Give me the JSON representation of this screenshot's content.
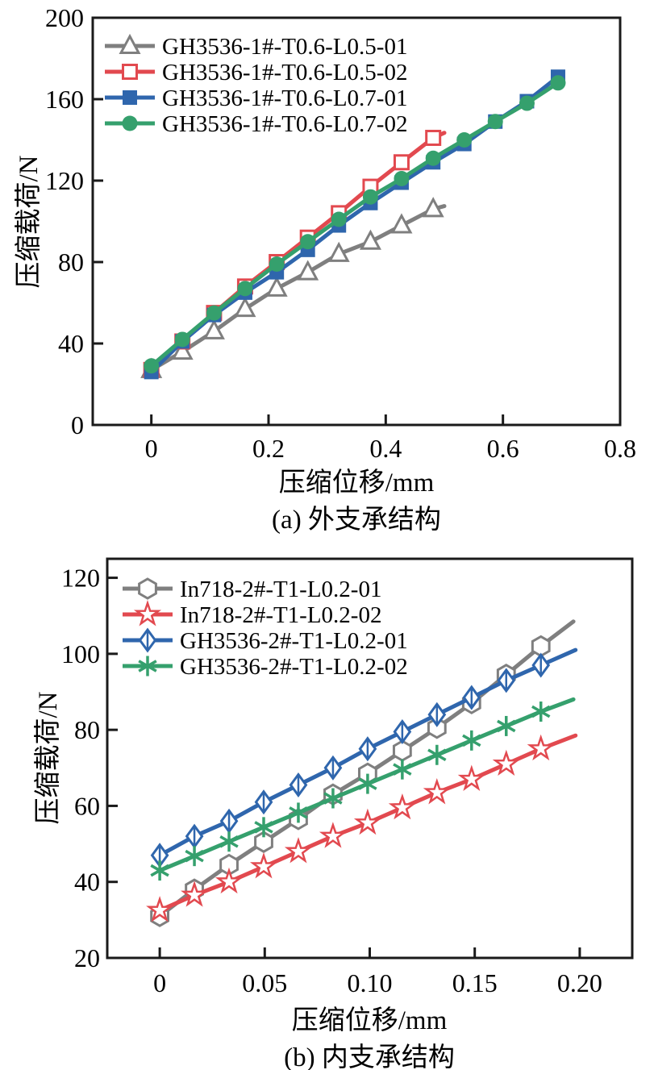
{
  "chart_data": [
    {
      "id": "a",
      "type": "line",
      "title": "",
      "xlabel": "压缩位移/mm",
      "ylabel": "压缩载荷/N",
      "caption": "(a) 外支承结构",
      "xlim": [
        -0.1,
        0.8
      ],
      "ylim": [
        0,
        200
      ],
      "grid": false,
      "legend_position": "upper-left-inside",
      "xticks": {
        "values": [
          0,
          0.2,
          0.4,
          0.6,
          0.8
        ],
        "labels": [
          "0",
          "0.2",
          "0.4",
          "0.6",
          "0.8"
        ]
      },
      "yticks": {
        "values": [
          0,
          40,
          80,
          120,
          160,
          200
        ],
        "labels": [
          "0",
          "40",
          "80",
          "120",
          "160",
          "200"
        ]
      },
      "series": [
        {
          "name": "GH3536-1#-T0.6-L0.5-01",
          "color": "#7f7f7f",
          "marker": "triangle-open",
          "x": [
            0,
            0.053,
            0.107,
            0.16,
            0.214,
            0.267,
            0.32,
            0.374,
            0.427,
            0.481
          ],
          "y": [
            27,
            36,
            46,
            57,
            67,
            75,
            84,
            90,
            98,
            106
          ],
          "line_end": [
            0.5,
            107.5
          ]
        },
        {
          "name": "GH3536-1#-T0.6-L0.5-02",
          "color": "#e2494f",
          "marker": "square-open",
          "x": [
            0,
            0.053,
            0.107,
            0.16,
            0.214,
            0.267,
            0.32,
            0.374,
            0.427,
            0.481
          ],
          "y": [
            27,
            41,
            55,
            68,
            80,
            92,
            104,
            117,
            129,
            141
          ],
          "line_end": [
            0.5,
            143.5
          ]
        },
        {
          "name": "GH3536-1#-T0.6-L0.7-01",
          "color": "#2f66ad",
          "marker": "square-filled",
          "x": [
            0,
            0.053,
            0.107,
            0.16,
            0.214,
            0.267,
            0.32,
            0.374,
            0.427,
            0.481,
            0.534,
            0.587,
            0.641,
            0.694
          ],
          "y": [
            26,
            41,
            54,
            65,
            75,
            86,
            98,
            109,
            119,
            129,
            138,
            149,
            159,
            171
          ],
          "line_end": null
        },
        {
          "name": "GH3536-1#-T0.6-L0.7-02",
          "color": "#35a06d",
          "marker": "circle-filled",
          "x": [
            0,
            0.053,
            0.107,
            0.16,
            0.214,
            0.267,
            0.32,
            0.374,
            0.427,
            0.481,
            0.534,
            0.587,
            0.641,
            0.694
          ],
          "y": [
            29,
            42,
            55,
            67,
            79,
            90,
            101,
            112,
            121,
            131,
            140,
            149,
            158,
            168
          ],
          "line_end": null
        }
      ]
    },
    {
      "id": "b",
      "type": "line",
      "title": "",
      "xlabel": "压缩位移/mm",
      "ylabel": "压缩载荷/N",
      "caption": "(b) 内支承结构",
      "xlim": [
        -0.025,
        0.225
      ],
      "ylim": [
        20,
        125
      ],
      "grid": false,
      "legend_position": "upper-left-inside",
      "xticks": {
        "values": [
          0,
          0.05,
          0.1,
          0.15,
          0.2
        ],
        "labels": [
          "0",
          "0.05",
          "0.10",
          "0.15",
          "0.20"
        ]
      },
      "yticks": {
        "values": [
          20,
          40,
          60,
          80,
          100,
          120
        ],
        "labels": [
          "20",
          "40",
          "60",
          "80",
          "100",
          "120"
        ]
      },
      "series": [
        {
          "name": "In718-2#-T1-L0.2-01",
          "color": "#7f7f7f",
          "marker": "hexagon-open",
          "x": [
            0,
            0.0165,
            0.033,
            0.0495,
            0.066,
            0.0825,
            0.099,
            0.1155,
            0.132,
            0.1485,
            0.165,
            0.1815
          ],
          "y": [
            31,
            38,
            44.5,
            50.5,
            56.5,
            63,
            68.5,
            74.5,
            80.5,
            87,
            94.5,
            102
          ],
          "line_end": [
            0.197,
            108.5
          ]
        },
        {
          "name": "In718-2#-T1-L0.2-02",
          "color": "#e2494f",
          "marker": "star-open",
          "x": [
            0,
            0.0165,
            0.033,
            0.0495,
            0.066,
            0.0825,
            0.099,
            0.1155,
            0.132,
            0.1485,
            0.165,
            0.1815
          ],
          "y": [
            32.5,
            36.5,
            40,
            44,
            48,
            52,
            55.5,
            59.5,
            63.5,
            67,
            71,
            75
          ],
          "line_end": [
            0.198,
            78.5
          ]
        },
        {
          "name": "GH3536-2#-T1-L0.2-01",
          "color": "#2f66ad",
          "marker": "diamond-cross-open",
          "x": [
            0,
            0.0165,
            0.033,
            0.0495,
            0.066,
            0.0825,
            0.099,
            0.1155,
            0.132,
            0.1485,
            0.165,
            0.1815
          ],
          "y": [
            47,
            52,
            56,
            61,
            65.5,
            70,
            75,
            79.5,
            84,
            88.5,
            93,
            97
          ],
          "line_end": [
            0.198,
            101
          ]
        },
        {
          "name": "GH3536-2#-T1-L0.2-02",
          "color": "#35a06d",
          "marker": "asterisk",
          "x": [
            0,
            0.0165,
            0.033,
            0.0495,
            0.066,
            0.0825,
            0.099,
            0.1155,
            0.132,
            0.1485,
            0.165,
            0.1815
          ],
          "y": [
            43,
            46.8,
            50.6,
            54.4,
            58.2,
            62,
            65.8,
            69.6,
            73.4,
            77.2,
            81,
            84.8
          ],
          "line_end": [
            0.197,
            88
          ]
        }
      ]
    }
  ]
}
